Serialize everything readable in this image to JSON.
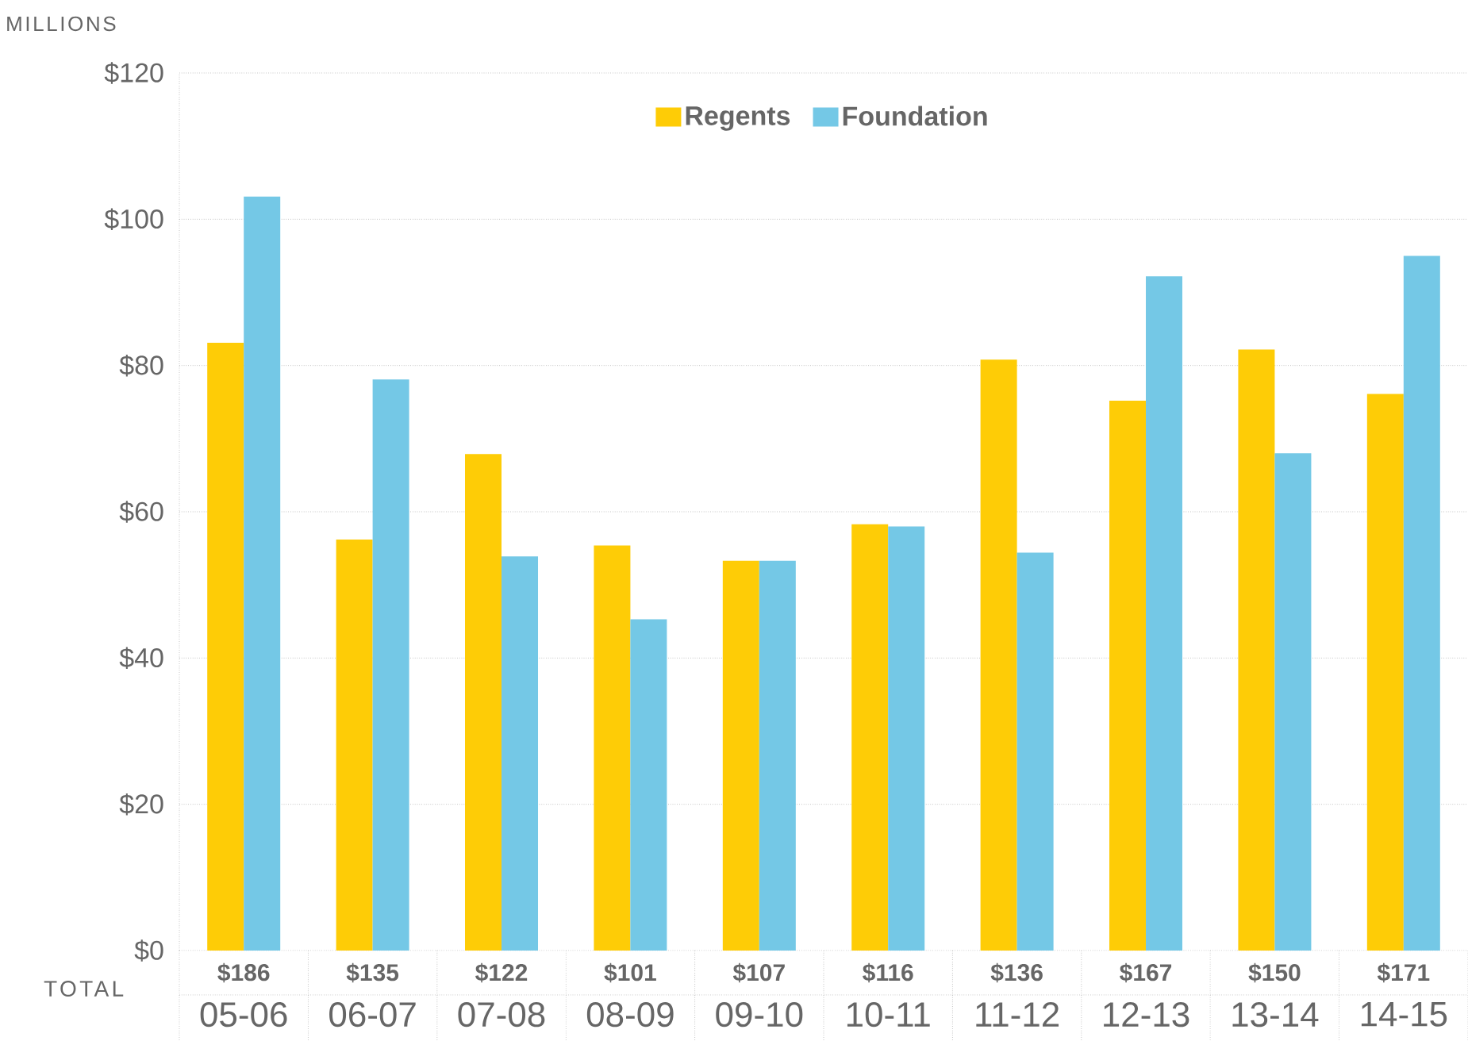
{
  "chart_data": {
    "type": "bar",
    "ylabel": "MILLIONS",
    "categories": [
      "05-06",
      "06-07",
      "07-08",
      "08-09",
      "09-10",
      "10-11",
      "11-12",
      "12-13",
      "13-14",
      "14-15"
    ],
    "series": [
      {
        "name": "Regents",
        "color": "#fecc06",
        "values": [
          83.1,
          56.2,
          67.9,
          55.4,
          53.3,
          58.3,
          80.8,
          75.2,
          82.2,
          76.1
        ]
      },
      {
        "name": "Foundation",
        "color": "#74c8e6",
        "values": [
          103.1,
          78.1,
          53.9,
          45.3,
          53.3,
          58.0,
          54.4,
          92.2,
          68.0,
          95.0
        ]
      }
    ],
    "ylim": [
      0,
      120
    ],
    "yticks": [
      {
        "value": 0,
        "label": "$0"
      },
      {
        "value": 20,
        "label": "$20"
      },
      {
        "value": 40,
        "label": "$40"
      },
      {
        "value": 60,
        "label": "$60"
      },
      {
        "value": 80,
        "label": "$80"
      },
      {
        "value": 100,
        "label": "$100"
      },
      {
        "value": 120,
        "label": "$120"
      }
    ],
    "grid": "y",
    "legend": "top",
    "totals": [
      "$186",
      "$135",
      "$122",
      "$101",
      "$107",
      "$116",
      "$136",
      "$167",
      "$150",
      "$171"
    ],
    "annotations": [
      "TOTAL"
    ]
  }
}
